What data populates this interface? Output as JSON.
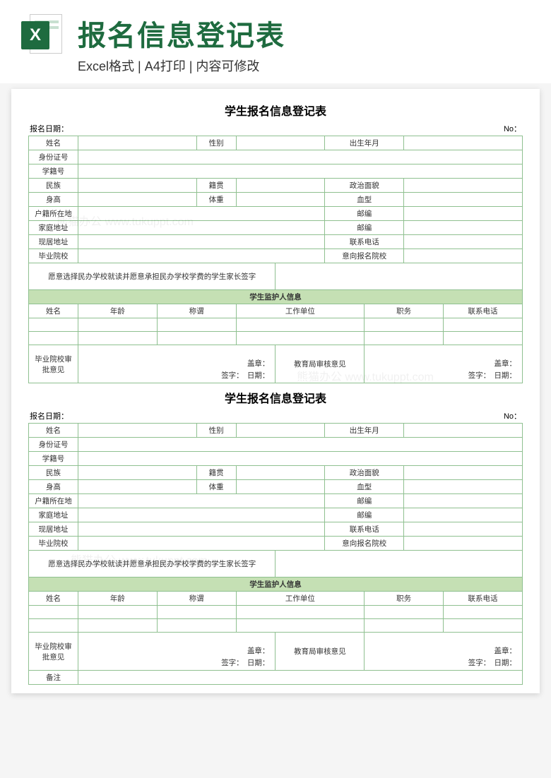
{
  "header": {
    "main_title": "报名信息登记表",
    "sub_title": "Excel格式 | A4打印 | 内容可修改",
    "icon_letter": "X"
  },
  "form": {
    "title": "学生报名信息登记表",
    "date_label": "报名日期：",
    "no_label": "No：",
    "labels": {
      "name": "姓名",
      "gender": "性别",
      "birth": "出生年月",
      "id_no": "身份证号",
      "student_no": "学籍号",
      "nation": "民族",
      "origin": "籍贯",
      "political": "政治面貌",
      "height": "身高",
      "weight": "体重",
      "blood": "血型",
      "huji": "户籍所在地",
      "zip1": "邮编",
      "home_addr": "家庭地址",
      "zip2": "邮编",
      "current_addr": "现居地址",
      "phone": "联系电话",
      "grad_school": "毕业院校",
      "intent_school": "意向报名院校",
      "consent": "愿意选择民办学校就读并愿意承担民办学校学费的学生家长签字",
      "guardian_section": "学生监护人信息",
      "g_name": "姓名",
      "g_age": "年龄",
      "g_relation": "称谓",
      "g_work": "工作单位",
      "g_position": "职务",
      "g_phone": "联系电话",
      "school_opinion": "毕业院校审批意见",
      "edu_opinion": "教育局审核意见",
      "seal": "盖章：",
      "sign_date": "签字：　日期：",
      "remark": "备注"
    }
  },
  "colors": {
    "brand": "#1e6b3f",
    "border": "#8fc090",
    "section_bg": "#c5e0b4"
  },
  "watermark": "熊猫办公 www.tukuppt.com"
}
